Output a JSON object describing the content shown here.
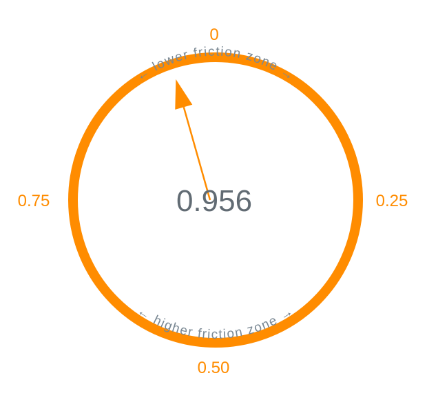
{
  "gauge": {
    "reading": "0.956",
    "value": 0.956,
    "scale_max": 1,
    "ticks": {
      "top": "0",
      "right": "0.25",
      "bottom": "0.50",
      "left": "0.75"
    },
    "zones": {
      "upper": "← lower friction zone →",
      "lower": "← higher friction zone →"
    }
  },
  "colors": {
    "accent": "#ff8c00",
    "text": "#616b73",
    "zone_text": "#7a8893",
    "background": "#ffffff"
  }
}
